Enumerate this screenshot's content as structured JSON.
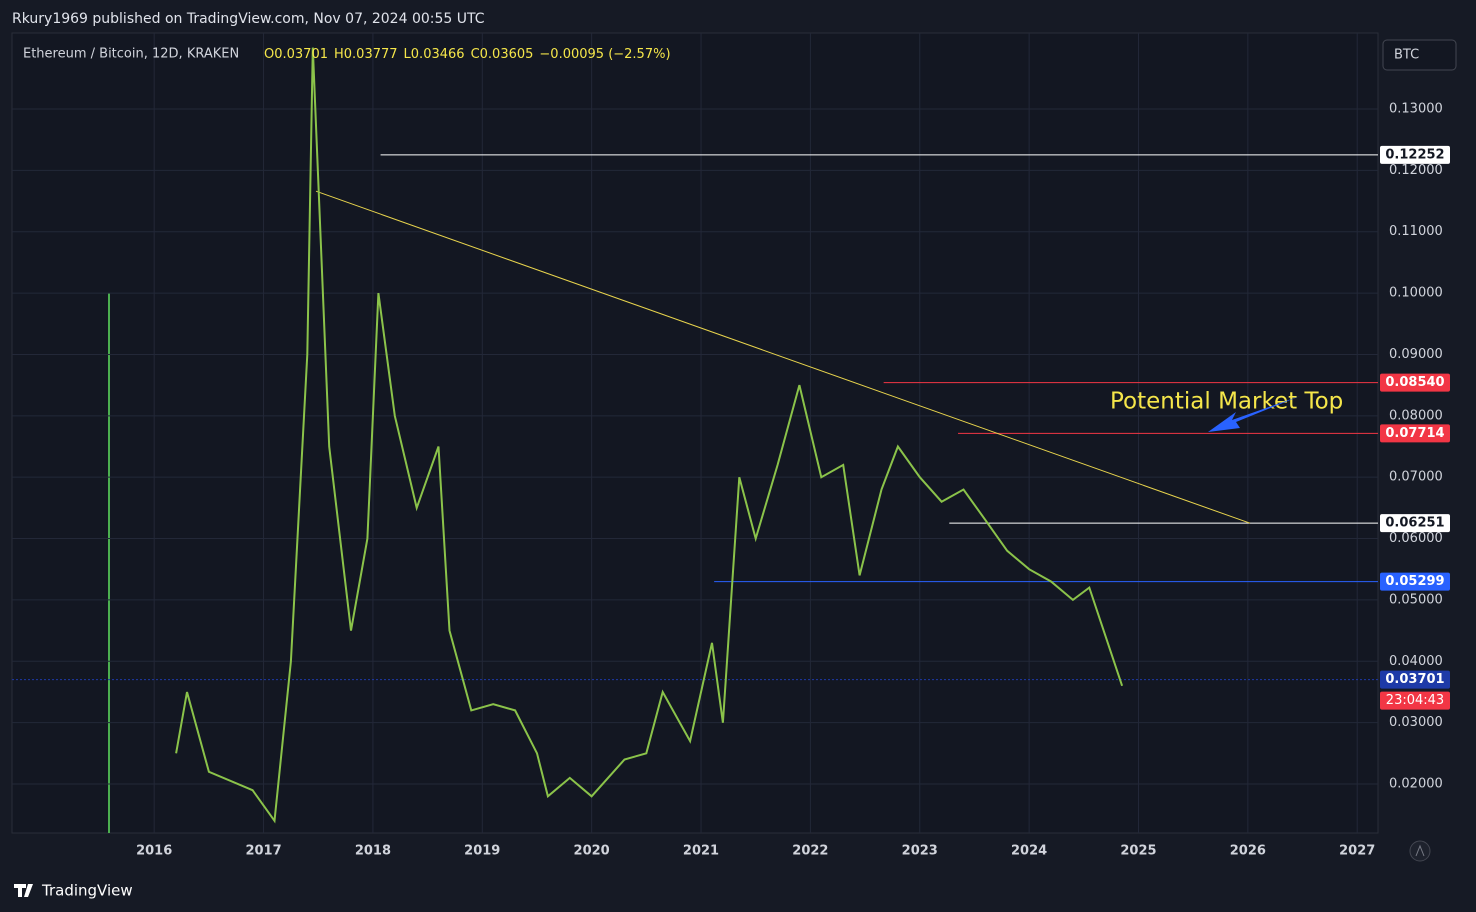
{
  "header": {
    "publisher": "Rkury1969 published on TradingView.com, Nov 07, 2024 00:55 UTC"
  },
  "chart_data": {
    "type": "line",
    "title": "Ethereum / Bitcoin, 12D, KRAKEN",
    "ohlc": {
      "open": "O0.03701",
      "high": "H0.03777",
      "low": "L0.03466",
      "close": "C0.03605",
      "change": "−0.00095 (−2.57%)"
    },
    "currency": "BTC",
    "x": [
      2016.2,
      2016.3,
      2016.5,
      2016.9,
      2017.1,
      2017.25,
      2017.4,
      2017.45,
      2017.6,
      2017.8,
      2017.95,
      2018.05,
      2018.2,
      2018.4,
      2018.6,
      2018.7,
      2018.9,
      2019.1,
      2019.3,
      2019.5,
      2019.6,
      2019.8,
      2020.0,
      2020.3,
      2020.5,
      2020.65,
      2020.9,
      2021.1,
      2021.2,
      2021.35,
      2021.5,
      2021.7,
      2021.9,
      2022.1,
      2022.3,
      2022.45,
      2022.65,
      2022.8,
      2023.0,
      2023.2,
      2023.4,
      2023.6,
      2023.8,
      2024.0,
      2024.2,
      2024.4,
      2024.55,
      2024.7,
      2024.85
    ],
    "series": [
      {
        "name": "ETH/BTC",
        "color": "#8bc34a",
        "values": [
          0.025,
          0.035,
          0.022,
          0.019,
          0.014,
          0.04,
          0.09,
          0.14,
          0.075,
          0.045,
          0.06,
          0.1,
          0.08,
          0.065,
          0.075,
          0.045,
          0.032,
          0.033,
          0.032,
          0.025,
          0.018,
          0.021,
          0.018,
          0.024,
          0.025,
          0.035,
          0.027,
          0.043,
          0.03,
          0.07,
          0.06,
          0.072,
          0.085,
          0.07,
          0.072,
          0.054,
          0.068,
          0.075,
          0.07,
          0.066,
          0.068,
          0.063,
          0.058,
          0.055,
          0.053,
          0.05,
          0.052,
          0.044,
          0.036
        ]
      }
    ],
    "trendline": {
      "x": [
        2017.48,
        2026.02
      ],
      "values": [
        0.1166,
        0.0625
      ],
      "color": "#e8d44d"
    },
    "levels": [
      {
        "value": 0.12252,
        "label": "0.12252",
        "color": "#ffffff",
        "x_start": 2018.07
      },
      {
        "value": 0.0854,
        "label": "0.08540",
        "color": "#f23645",
        "x_start": 2022.67
      },
      {
        "value": 0.07714,
        "label": "0.07714",
        "color": "#f23645",
        "x_start": 2023.35
      },
      {
        "value": 0.06251,
        "label": "0.06251",
        "color": "#ffffff",
        "x_start": 2023.27
      },
      {
        "value": 0.05299,
        "label": "0.05299",
        "color": "#2962ff",
        "x_start": 2021.12
      },
      {
        "value": 0.03701,
        "label": "0.03701",
        "color": "#1e3aa8",
        "x_start": 2014.7
      }
    ],
    "countdown": "23:04:43",
    "annotation": "Potential Market Top",
    "xlim": [
      2014.7,
      2027.19
    ],
    "ylim": [
      0.01202,
      0.14238
    ],
    "xticks": [
      2016,
      2017,
      2018,
      2019,
      2020,
      2021,
      2022,
      2023,
      2024,
      2025,
      2026,
      2027
    ],
    "yticks": [
      {
        "value": 0.02,
        "label": "0.02000"
      },
      {
        "value": 0.03,
        "label": "0.03000"
      },
      {
        "value": 0.04,
        "label": "0.04000"
      },
      {
        "value": 0.05,
        "label": "0.05000"
      },
      {
        "value": 0.06,
        "label": "0.06000"
      },
      {
        "value": 0.07,
        "label": "0.07000"
      },
      {
        "value": 0.08,
        "label": "0.08000"
      },
      {
        "value": 0.09,
        "label": "0.09000"
      },
      {
        "value": 0.1,
        "label": "0.10000"
      },
      {
        "value": 0.11,
        "label": "0.11000"
      },
      {
        "value": 0.12,
        "label": "0.12000"
      },
      {
        "value": 0.13,
        "label": "0.13000"
      }
    ],
    "grid": true
  },
  "footer": {
    "brand": "TradingView"
  }
}
